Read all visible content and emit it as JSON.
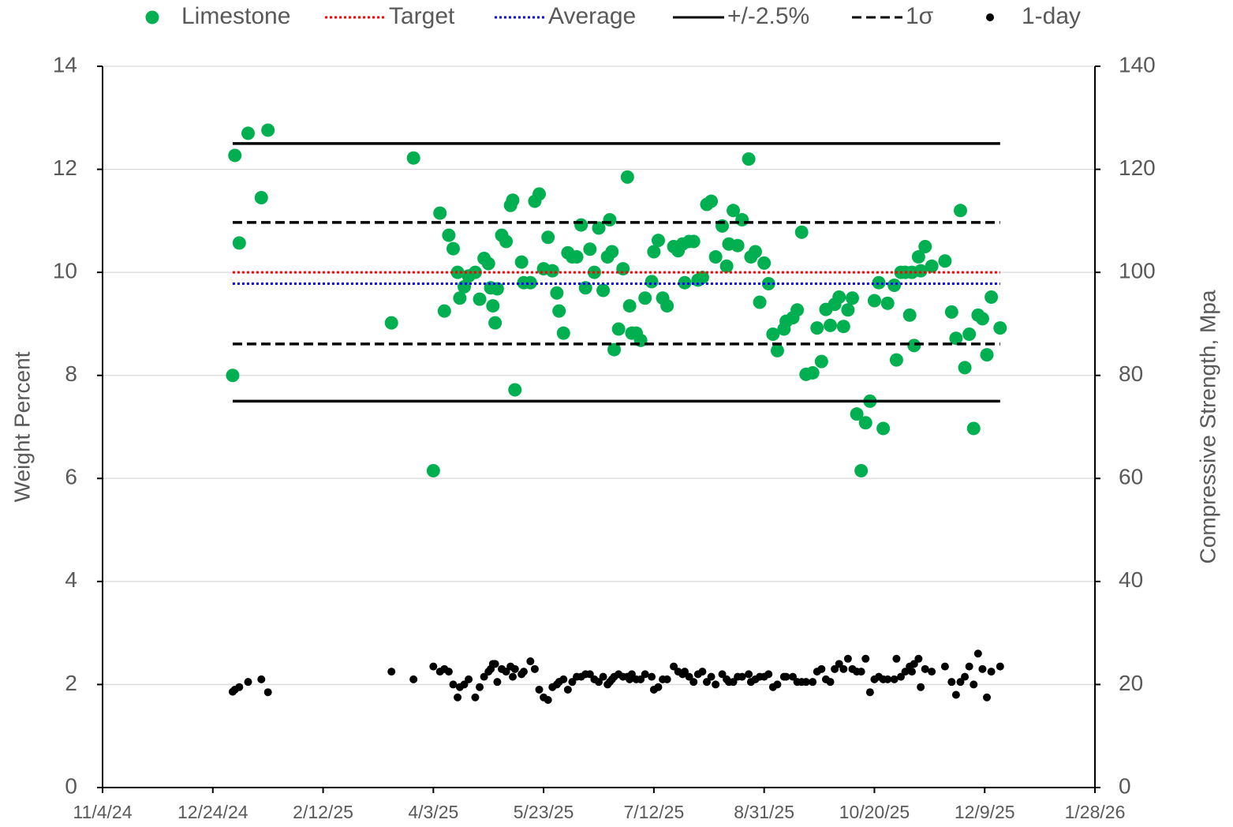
{
  "chart_data": {
    "type": "scatter",
    "y_label": "Weight Percent",
    "y2_label": "Compressive Strength, Mpa",
    "xlim": [
      "2024-11-04",
      "2026-01-28"
    ],
    "xticks": [
      {
        "value": "2024-11-04",
        "label": "11/4/24"
      },
      {
        "value": "2024-12-24",
        "label": "12/24/24"
      },
      {
        "value": "2025-02-12",
        "label": "2/12/25"
      },
      {
        "value": "2025-04-03",
        "label": "4/3/25"
      },
      {
        "value": "2025-05-23",
        "label": "5/23/25"
      },
      {
        "value": "2025-07-12",
        "label": "7/12/25"
      },
      {
        "value": "2025-08-31",
        "label": "8/31/25"
      },
      {
        "value": "2025-10-20",
        "label": "10/20/25"
      },
      {
        "value": "2025-12-09",
        "label": "12/9/25"
      },
      {
        "value": "2026-01-28",
        "label": "1/28/26"
      }
    ],
    "ylim": [
      0,
      14
    ],
    "yticks": [
      0,
      2,
      4,
      6,
      8,
      10,
      12,
      14
    ],
    "y2lim": [
      0,
      140
    ],
    "y2ticks": [
      0,
      20,
      40,
      60,
      80,
      100,
      120,
      140
    ],
    "grid": true,
    "legend": "top",
    "hline_x": [
      "2025-01-02",
      "2025-12-16"
    ],
    "x": [
      "2025-01-02",
      "2025-01-03",
      "2025-01-05",
      "2025-01-09",
      "2025-01-15",
      "2025-01-18",
      "2025-03-15",
      "2025-03-25",
      "2025-04-03",
      "2025-04-06",
      "2025-04-08",
      "2025-04-10",
      "2025-04-12",
      "2025-04-14",
      "2025-04-15",
      "2025-04-17",
      "2025-04-19",
      "2025-04-22",
      "2025-04-24",
      "2025-04-26",
      "2025-04-28",
      "2025-04-29",
      "2025-04-30",
      "2025-05-01",
      "2025-05-02",
      "2025-05-04",
      "2025-05-06",
      "2025-05-08",
      "2025-05-09",
      "2025-05-10",
      "2025-05-13",
      "2025-05-14",
      "2025-05-17",
      "2025-05-19",
      "2025-05-21",
      "2025-05-23",
      "2025-05-25",
      "2025-05-27",
      "2025-05-29",
      "2025-05-30",
      "2025-06-01",
      "2025-06-03",
      "2025-06-05",
      "2025-06-07",
      "2025-06-09",
      "2025-06-11",
      "2025-06-13",
      "2025-06-15",
      "2025-06-17",
      "2025-06-19",
      "2025-06-21",
      "2025-06-22",
      "2025-06-23",
      "2025-06-24",
      "2025-06-26",
      "2025-06-28",
      "2025-06-30",
      "2025-07-01",
      "2025-07-02",
      "2025-07-04",
      "2025-07-06",
      "2025-07-08",
      "2025-07-11",
      "2025-07-12",
      "2025-07-14",
      "2025-07-16",
      "2025-07-18",
      "2025-07-21",
      "2025-07-23",
      "2025-07-25",
      "2025-07-26",
      "2025-07-28",
      "2025-07-30",
      "2025-08-01",
      "2025-08-03",
      "2025-08-05",
      "2025-08-07",
      "2025-08-09",
      "2025-08-12",
      "2025-08-14",
      "2025-08-15",
      "2025-08-17",
      "2025-08-19",
      "2025-08-21",
      "2025-08-24",
      "2025-08-25",
      "2025-08-27",
      "2025-08-29",
      "2025-08-31",
      "2025-09-02",
      "2025-09-04",
      "2025-09-06",
      "2025-09-09",
      "2025-09-10",
      "2025-09-13",
      "2025-09-15",
      "2025-09-17",
      "2025-09-19",
      "2025-09-22",
      "2025-09-24",
      "2025-09-26",
      "2025-09-28",
      "2025-09-30",
      "2025-10-02",
      "2025-10-04",
      "2025-10-06",
      "2025-10-08",
      "2025-10-10",
      "2025-10-12",
      "2025-10-14",
      "2025-10-16",
      "2025-10-18",
      "2025-10-20",
      "2025-10-22",
      "2025-10-24",
      "2025-10-26",
      "2025-10-29",
      "2025-10-30",
      "2025-11-01",
      "2025-11-03",
      "2025-11-05",
      "2025-11-06",
      "2025-11-07",
      "2025-11-09",
      "2025-11-10",
      "2025-11-12",
      "2025-11-15",
      "2025-11-21",
      "2025-11-24",
      "2025-11-26",
      "2025-11-28",
      "2025-11-30",
      "2025-12-02",
      "2025-12-04",
      "2025-12-06",
      "2025-12-08",
      "2025-12-10",
      "2025-12-12",
      "2025-12-16"
    ],
    "series": [
      {
        "name": "Limestone",
        "color": "#00b050",
        "style": "marker",
        "size": 8.5,
        "values": [
          8.0,
          12.27,
          10.57,
          12.7,
          11.45,
          12.76,
          9.02,
          12.22,
          6.15,
          11.15,
          9.25,
          10.72,
          10.46,
          10.0,
          9.5,
          9.72,
          9.93,
          10.0,
          9.48,
          10.27,
          10.17,
          9.7,
          9.35,
          9.02,
          9.68,
          10.72,
          10.6,
          11.3,
          11.4,
          7.72,
          10.2,
          9.8,
          9.8,
          11.38,
          11.52,
          10.07,
          10.68,
          10.03,
          9.6,
          9.25,
          8.82,
          10.38,
          10.3,
          10.3,
          10.92,
          9.7,
          10.45,
          10.0,
          10.86,
          9.65,
          10.3,
          11.02,
          10.4,
          8.5,
          8.9,
          10.07,
          11.85,
          9.35,
          8.82,
          8.82,
          8.68,
          9.5,
          9.82,
          10.4,
          10.62,
          9.5,
          9.35,
          10.5,
          10.42,
          10.55,
          9.8,
          10.6,
          10.6,
          9.85,
          9.9,
          11.32,
          11.38,
          10.3,
          10.9,
          10.12,
          10.55,
          11.2,
          10.52,
          11.02,
          12.2,
          10.3,
          10.4,
          9.42,
          10.18,
          9.78,
          8.8,
          8.48,
          8.9,
          9.05,
          9.12,
          9.27,
          10.78,
          8.02,
          8.05,
          8.92,
          8.27,
          9.28,
          8.97,
          9.38,
          9.52,
          8.95,
          9.27,
          9.5,
          7.25,
          6.15,
          7.08,
          7.5,
          9.45,
          9.8,
          6.97,
          9.4,
          9.75,
          8.3,
          10.0,
          10.0,
          9.17,
          10.0,
          8.58,
          10.3,
          10.03,
          10.5,
          10.12,
          10.22,
          9.23,
          8.72,
          11.2,
          8.15,
          8.8,
          6.97,
          9.17,
          9.1,
          8.4,
          9.52,
          8.92
        ]
      },
      {
        "name": "Target",
        "color": "#ff0000",
        "style": "dotted",
        "values": [
          10
        ]
      },
      {
        "name": "Average",
        "color": "#0000ff",
        "style": "dotted",
        "values": [
          9.78
        ]
      },
      {
        "name": "+/-2.5%",
        "color": "#000000",
        "style": "solid",
        "values": [
          12.5,
          7.5
        ]
      },
      {
        "name": "1σ",
        "color": "#000000",
        "style": "dashed",
        "values": [
          10.97,
          8.61
        ]
      },
      {
        "name": "1-day",
        "color": "#000000",
        "style": "marker",
        "size": 5,
        "axis": "y2",
        "values": [
          18.6,
          19,
          19.5,
          20.5,
          21,
          18.5,
          22.5,
          21,
          23.5,
          22.5,
          23,
          22.5,
          20,
          17.5,
          19.5,
          20,
          21,
          17.5,
          19.5,
          21.5,
          22.5,
          23,
          24,
          24,
          20.5,
          23,
          22.5,
          23.5,
          21.5,
          23,
          22,
          22.5,
          24.5,
          23,
          19,
          17.5,
          17,
          19.5,
          20,
          20.5,
          21,
          19,
          20.5,
          21.5,
          21.5,
          22,
          22,
          21,
          20.5,
          21.5,
          20,
          20.5,
          21,
          21.5,
          22,
          21.5,
          21.5,
          21,
          22,
          21,
          21,
          22,
          21.5,
          19,
          19.5,
          21,
          21,
          23.5,
          22.5,
          22,
          22.5,
          21.5,
          20.5,
          22,
          22.5,
          20.5,
          21.5,
          20,
          22,
          21,
          20.5,
          20.5,
          21.5,
          21.5,
          22,
          20.5,
          21,
          21.5,
          21.5,
          22,
          19.5,
          20,
          21.5,
          21.5,
          21.5,
          20.5,
          20.5,
          20.5,
          20.5,
          22.5,
          23,
          21,
          20.5,
          23,
          24,
          23,
          25,
          23,
          22.5,
          22.5,
          25,
          18.5,
          21,
          21.5,
          21,
          21,
          21,
          25,
          21.5,
          22.5,
          23.5,
          22.5,
          24,
          25,
          19.5,
          23,
          22.5,
          23.5,
          20.5,
          18,
          20.5,
          21.5,
          23.5,
          20,
          26,
          23,
          17.5,
          22.5,
          23.5
        ]
      }
    ]
  }
}
